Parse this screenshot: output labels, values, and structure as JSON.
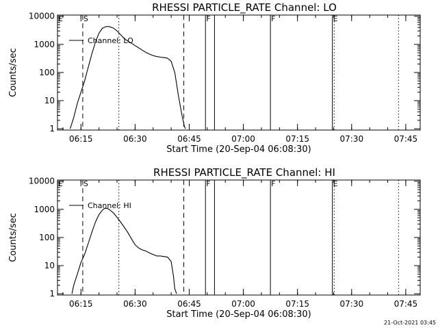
{
  "footer_stamp": "21-Oct-2021 03:45",
  "chart_data": [
    {
      "type": "line",
      "title": "RHESSI PARTICLE_RATE Channel: LO",
      "xlabel": "Start Time (20-Sep-04 06:08:30)",
      "ylabel": "Counts/sec",
      "x_unit": "time HH:MM",
      "xlim": [
        "06:08:30",
        "07:49:00"
      ],
      "ylim": [
        0.9,
        11000
      ],
      "yscale": "log",
      "x_ticks": [
        "06:15",
        "06:30",
        "06:45",
        "07:00",
        "07:15",
        "07:30",
        "07:45"
      ],
      "y_ticks": [
        {
          "value": 1,
          "label": "1"
        },
        {
          "value": 10,
          "label": "10"
        },
        {
          "value": 100,
          "label": "100"
        },
        {
          "value": 1000,
          "label": "1000"
        },
        {
          "value": 10000,
          "label": "10000"
        }
      ],
      "legend": {
        "placement": "top-left",
        "entries": [
          "Channel: LO"
        ]
      },
      "series": [
        {
          "name": "Channel: LO",
          "x": [
            "06:12:00",
            "06:13:00",
            "06:14:00",
            "06:15:00",
            "06:16:00",
            "06:17:00",
            "06:18:00",
            "06:19:00",
            "06:20:00",
            "06:21:00",
            "06:22:00",
            "06:22:40",
            "06:23:00",
            "06:24:00",
            "06:25:00",
            "06:26:00",
            "06:27:00",
            "06:28:00",
            "06:29:00",
            "06:30:00",
            "06:31:00",
            "06:32:00",
            "06:33:00",
            "06:34:00",
            "06:35:00",
            "06:36:00",
            "06:37:00",
            "06:38:00",
            "06:39:00",
            "06:40:00",
            "06:41:00",
            "06:42:00",
            "06:43:00",
            "06:43:40",
            "06:44:00"
          ],
          "y": [
            1,
            2.5,
            8,
            20,
            50,
            150,
            450,
            1200,
            2500,
            3800,
            4300,
            4300,
            4200,
            3800,
            3000,
            2200,
            1600,
            1300,
            1100,
            900,
            750,
            620,
            520,
            450,
            400,
            370,
            350,
            340,
            320,
            250,
            100,
            15,
            3,
            1.2,
            1
          ]
        }
      ],
      "vlines": [
        {
          "x": "06:15:30",
          "style": "dashed",
          "label": "S"
        },
        {
          "x": "06:25:30",
          "style": "dotted"
        },
        {
          "x": "06:43:30",
          "style": "dashed"
        },
        {
          "x": "06:49:30",
          "style": "solid",
          "label": "F"
        },
        {
          "x": "06:52:00",
          "style": "solid"
        },
        {
          "x": "07:07:30",
          "style": "solid",
          "label": "F"
        },
        {
          "x": "07:24:40",
          "style": "solid",
          "label": "E"
        },
        {
          "x": "07:25:10",
          "style": "dotted"
        },
        {
          "x": "07:43:00",
          "style": "dotted"
        }
      ],
      "edge_label": "E"
    },
    {
      "type": "line",
      "title": "RHESSI PARTICLE_RATE Channel: HI",
      "xlabel": "Start Time (20-Sep-04 06:08:30)",
      "ylabel": "Counts/sec",
      "x_unit": "time HH:MM",
      "xlim": [
        "06:08:30",
        "07:49:00"
      ],
      "ylim": [
        0.9,
        11000
      ],
      "yscale": "log",
      "x_ticks": [
        "06:15",
        "06:30",
        "06:45",
        "07:00",
        "07:15",
        "07:30",
        "07:45"
      ],
      "y_ticks": [
        {
          "value": 1,
          "label": "1"
        },
        {
          "value": 10,
          "label": "10"
        },
        {
          "value": 100,
          "label": "100"
        },
        {
          "value": 1000,
          "label": "1000"
        },
        {
          "value": 10000,
          "label": "10000"
        }
      ],
      "legend": {
        "placement": "top-left",
        "entries": [
          "Channel: HI"
        ]
      },
      "series": [
        {
          "name": "Channel: HI",
          "x": [
            "06:12:30",
            "06:13:00",
            "06:14:00",
            "06:15:00",
            "06:16:00",
            "06:17:00",
            "06:18:00",
            "06:19:00",
            "06:20:00",
            "06:21:00",
            "06:21:40",
            "06:22:30",
            "06:23:00",
            "06:24:00",
            "06:25:00",
            "06:26:00",
            "06:27:00",
            "06:28:00",
            "06:29:00",
            "06:30:00",
            "06:31:00",
            "06:32:00",
            "06:33:00",
            "06:34:00",
            "06:35:00",
            "06:36:00",
            "06:37:00",
            "06:38:00",
            "06:39:00",
            "06:40:00",
            "06:40:40",
            "06:41:00",
            "06:41:30"
          ],
          "y": [
            1,
            2,
            5,
            13,
            25,
            60,
            150,
            350,
            650,
            950,
            1100,
            1050,
            950,
            750,
            520,
            350,
            230,
            150,
            90,
            55,
            42,
            36,
            33,
            28,
            25,
            22,
            22,
            21,
            20,
            14,
            4,
            1.5,
            1
          ]
        }
      ],
      "vlines": [
        {
          "x": "06:15:30",
          "style": "dashed",
          "label": "S"
        },
        {
          "x": "06:25:30",
          "style": "dotted"
        },
        {
          "x": "06:43:30",
          "style": "dashed"
        },
        {
          "x": "06:49:30",
          "style": "solid",
          "label": "F"
        },
        {
          "x": "06:52:00",
          "style": "solid"
        },
        {
          "x": "07:07:30",
          "style": "solid",
          "label": "F"
        },
        {
          "x": "07:24:40",
          "style": "solid",
          "label": "E"
        },
        {
          "x": "07:25:10",
          "style": "dotted"
        },
        {
          "x": "07:43:00",
          "style": "dotted"
        }
      ],
      "edge_label": "E"
    }
  ]
}
